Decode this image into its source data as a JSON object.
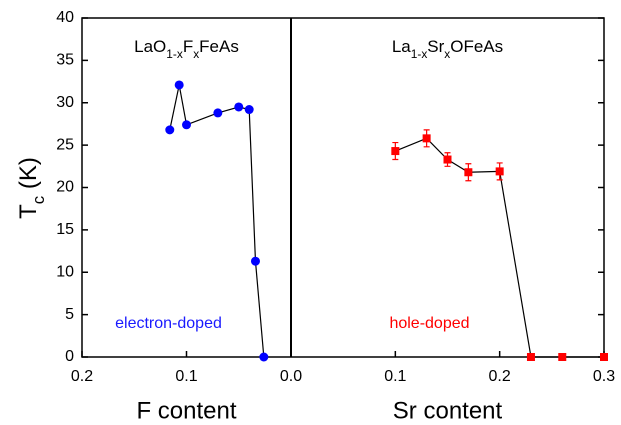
{
  "chart_data": [
    {
      "type": "scatter",
      "title": [
        {
          "text": "LaO"
        },
        {
          "text": "1-x",
          "sub": true
        },
        {
          "text": "F"
        },
        {
          "text": "x",
          "sub": true
        },
        {
          "text": "FeAs"
        }
      ],
      "xlabel": "F content",
      "ylabel": [
        {
          "text": "T"
        },
        {
          "text": "c",
          "sub": true
        },
        {
          "text": " (K)"
        }
      ],
      "annotation": "electron-doped",
      "annotation_color": "#1a1aff",
      "xlim": [
        0.2,
        0
      ],
      "xticks": [
        0.2,
        0.1,
        {
          "value": 0,
          "label": "0.0"
        }
      ],
      "ylim": [
        0,
        40
      ],
      "yticks": [
        0,
        5,
        10,
        15,
        20,
        25,
        30,
        35,
        40
      ],
      "series": [
        {
          "name": "LaO1-xFxFeAs",
          "color": "#0000ff",
          "marker": "circle",
          "x": [
            0.116,
            0.107,
            0.1,
            0.07,
            0.05,
            0.04,
            0.034,
            0.026
          ],
          "values": [
            26.8,
            32.1,
            27.4,
            28.8,
            29.5,
            29.2,
            11.3,
            0
          ]
        }
      ]
    },
    {
      "type": "scatter",
      "title": [
        {
          "text": "La"
        },
        {
          "text": "1-x",
          "sub": true
        },
        {
          "text": "Sr"
        },
        {
          "text": "x",
          "sub": true
        },
        {
          "text": "OFeAs"
        }
      ],
      "xlabel": "Sr content",
      "annotation": "hole-doped",
      "annotation_color": "#ff0000",
      "xlim": [
        0,
        0.3
      ],
      "xticks": [
        0.1,
        0.2,
        0.3
      ],
      "series": [
        {
          "name": "La1-xSrxOFeAs",
          "color": "#ff0000",
          "marker": "square",
          "x": [
            0.1,
            0.13,
            0.15,
            0.17,
            0.2,
            0.23,
            0.26,
            0.3
          ],
          "values": [
            24.3,
            25.8,
            23.3,
            21.8,
            21.9,
            0,
            0,
            0
          ],
          "errors": [
            1,
            1,
            0.8,
            1,
            1,
            0,
            0,
            0
          ]
        }
      ]
    }
  ]
}
